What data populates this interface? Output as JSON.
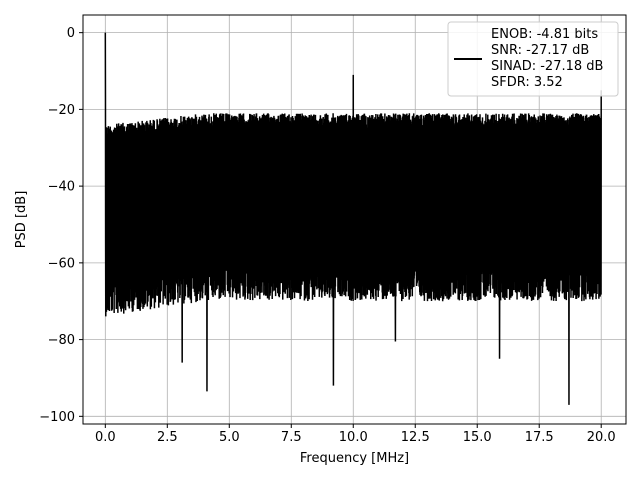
{
  "chart_data": {
    "type": "line",
    "title": "",
    "xlabel": "Frequency [MHz]",
    "ylabel": "PSD [dB]",
    "xlim": [
      -0.9,
      21.0
    ],
    "ylim": [
      -102.0,
      4.6
    ],
    "xticks": [
      0.0,
      2.5,
      5.0,
      7.5,
      10.0,
      12.5,
      15.0,
      17.5,
      20.0
    ],
    "xtick_labels": [
      "0.0",
      "2.5",
      "5.0",
      "7.5",
      "10.0",
      "12.5",
      "15.0",
      "17.5",
      "20.0"
    ],
    "yticks": [
      0,
      -20,
      -40,
      -60,
      -80,
      -100
    ],
    "ytick_labels": [
      "0",
      "−20",
      "−40",
      "−60",
      "−80",
      "−100"
    ],
    "grid": true,
    "line_color": "#000000",
    "legend_placement": "upper right",
    "legend": [
      "ENOB: -4.81 bits",
      "SNR: -27.17 dB",
      "SINAD: -27.18 dB",
      "SFDR: 3.52"
    ],
    "series": [
      {
        "x_range": [
          0.0,
          20.0
        ],
        "noise_floor_upper_db": [
          -24,
          -21
        ],
        "noise_floor_lower_db": [
          -64,
          -60
        ],
        "peaks": [
          {
            "x": 0.0,
            "y": 0.0
          },
          {
            "x": 10.0,
            "y": -11.0
          },
          {
            "x": 20.0,
            "y": -15.0
          }
        ],
        "notches": [
          {
            "x": 3.1,
            "y": -86
          },
          {
            "x": 4.1,
            "y": -93.5
          },
          {
            "x": 9.2,
            "y": -92
          },
          {
            "x": 11.7,
            "y": -80.5
          },
          {
            "x": 15.9,
            "y": -85
          },
          {
            "x": 18.7,
            "y": -97
          }
        ]
      }
    ]
  }
}
